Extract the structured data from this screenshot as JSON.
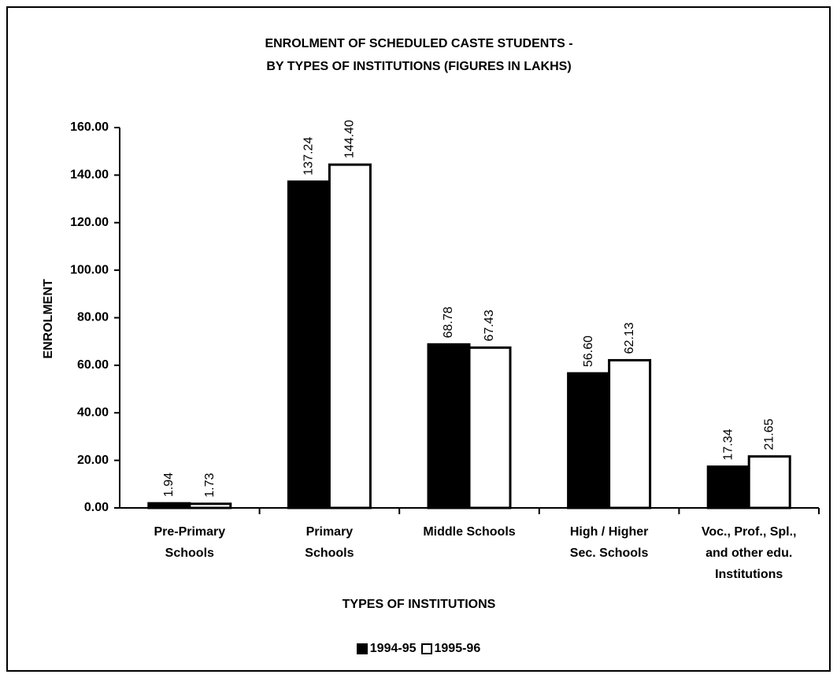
{
  "chart_data": {
    "type": "bar",
    "title": [
      "ENROLMENT OF SCHEDULED CASTE STUDENTS -",
      "BY TYPES OF INSTITUTIONS (FIGURES IN LAKHS)"
    ],
    "x_label": "TYPES OF INSTITUTIONS",
    "y_label": "ENROLMENT",
    "categories": [
      "Pre-Primary\nSchools",
      "Primary\nSchools",
      "Middle Schools",
      "High / Higher\nSec. Schools",
      "Voc., Prof., Spl.,\nand other edu.\nInstitutions"
    ],
    "series": [
      {
        "name": "1994-95",
        "color": "#000000",
        "values": [
          1.94,
          137.24,
          68.78,
          56.6,
          17.34
        ],
        "value_labels": [
          "1.94",
          "137.24",
          "68.78",
          "56.60",
          "17.34"
        ]
      },
      {
        "name": "1995-96",
        "color": "#ffffff",
        "values": [
          1.73,
          144.4,
          67.43,
          62.13,
          21.65
        ],
        "value_labels": [
          "1.73",
          "144.40",
          "67.43",
          "62.13",
          "21.65"
        ]
      }
    ],
    "ylim": [
      0,
      160
    ],
    "yticks": [
      {
        "value": 0,
        "label": "0.00"
      },
      {
        "value": 20,
        "label": "20.00"
      },
      {
        "value": 40,
        "label": "40.00"
      },
      {
        "value": 60,
        "label": "60.00"
      },
      {
        "value": 80,
        "label": "80.00"
      },
      {
        "value": 100,
        "label": "100.00"
      },
      {
        "value": 120,
        "label": "120.00"
      },
      {
        "value": 140,
        "label": "140.00"
      },
      {
        "value": 160,
        "label": "160.00"
      }
    ],
    "legend": "bottom",
    "grid": false
  }
}
